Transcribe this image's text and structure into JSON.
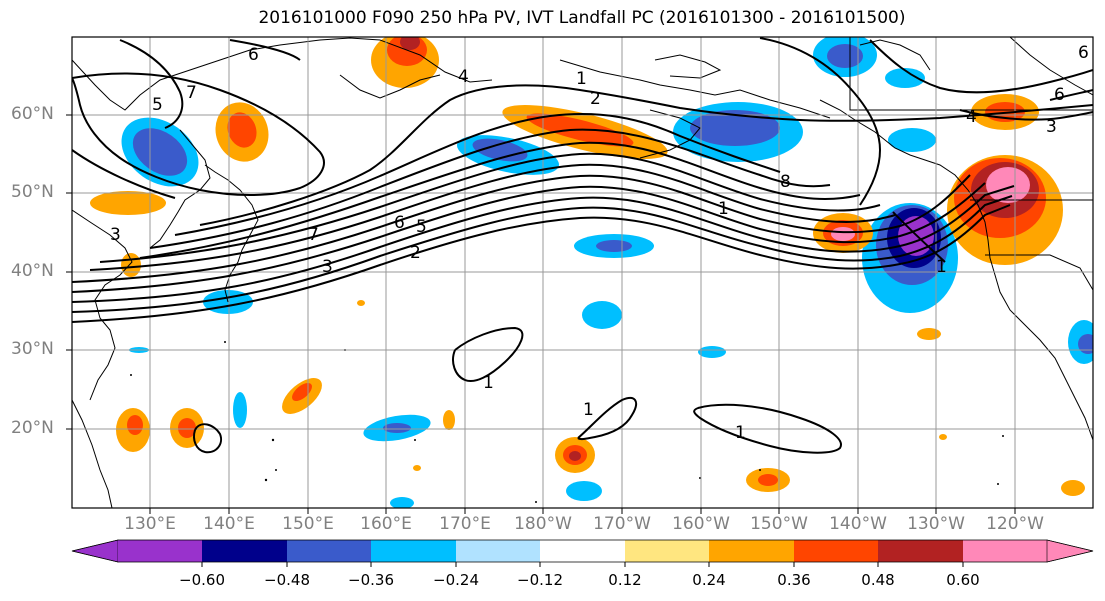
{
  "title": "2016101000 F090 250 hPa PV, IVT Landfall PC (2016101300 - 2016101500)",
  "lat_labels": [
    "60°N",
    "50°N",
    "40°N",
    "30°N",
    "20°N"
  ],
  "lon_labels": [
    "130°E",
    "140°E",
    "150°E",
    "160°E",
    "170°E",
    "180°W",
    "170°W",
    "160°W",
    "150°W",
    "140°W",
    "130°W",
    "120°W"
  ],
  "contour_labels": [
    "1",
    "2",
    "3",
    "4",
    "5",
    "6",
    "7",
    "8",
    "1",
    "2",
    "3",
    "5",
    "6",
    "7",
    "1",
    "1",
    "1",
    "1",
    "4",
    "3",
    "6",
    "6"
  ],
  "colorbar": {
    "tick_labels": [
      "−0.60",
      "−0.48",
      "−0.36",
      "−0.24",
      "−0.12",
      "0.12",
      "0.24",
      "0.36",
      "0.48",
      "0.60"
    ],
    "colors": [
      "#9932CC",
      "#00008B",
      "#3A5BCB",
      "#00BFFF",
      "#B0E2FF",
      "#FFFFFF",
      "#FFE680",
      "#FFA500",
      "#FF4500",
      "#B22222",
      "#FF88B8"
    ]
  },
  "colors": {
    "positive_anomaly": "#FF4500",
    "negative_anomaly": "#3A5BCB",
    "contour": "#000000",
    "grid": "#999999"
  }
}
